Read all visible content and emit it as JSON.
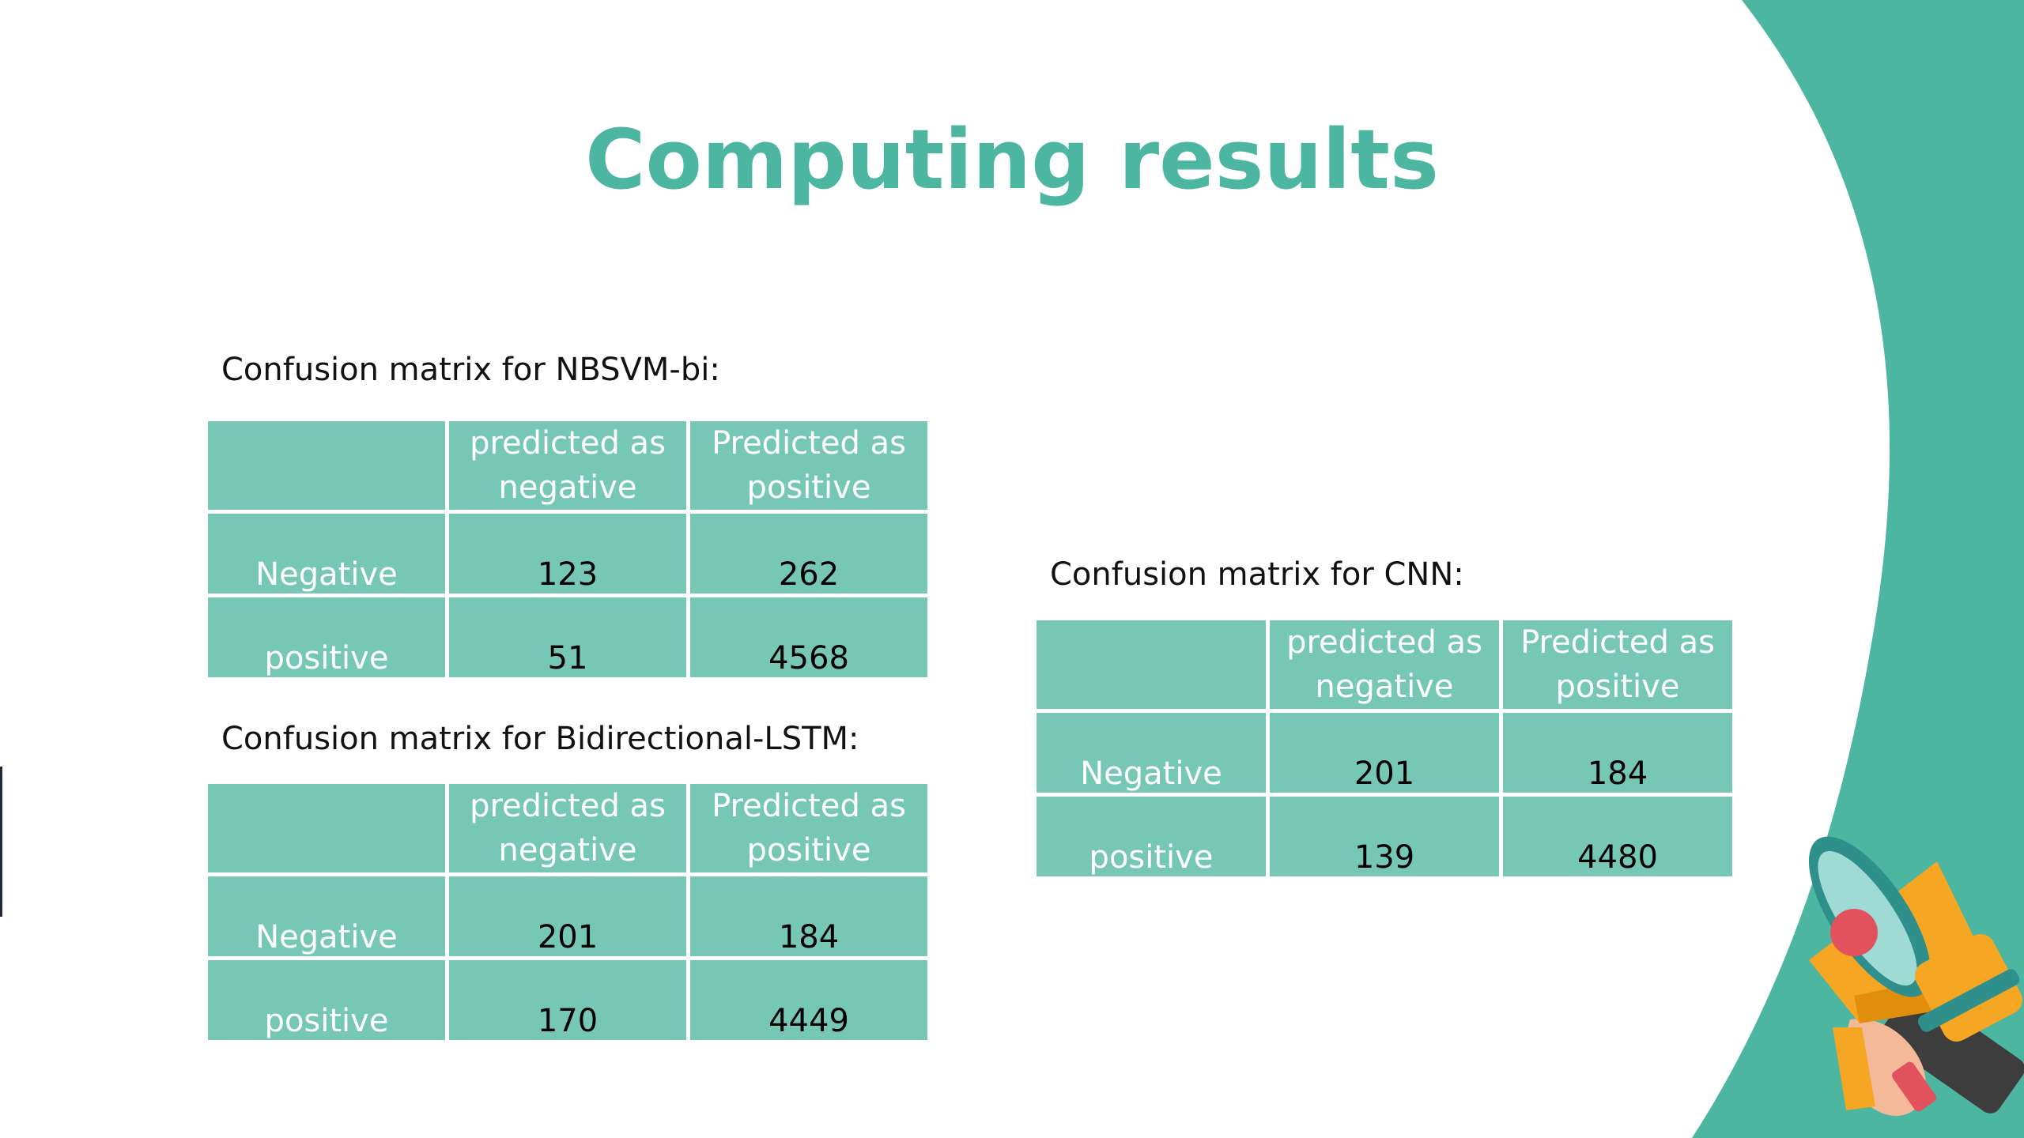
{
  "slide": {
    "title": "Computing results",
    "colors": {
      "accent": "#4db6a0",
      "cell": "#76c7b4",
      "title": "#4db6a0",
      "megaphone_body": "#f5a623",
      "megaphone_bell": "#2f8f8a",
      "megaphone_mouth": "#e2525d"
    },
    "icons": [
      "megaphone-icon"
    ]
  },
  "tables": [
    {
      "caption": "Confusion matrix for NBSVM-bi:",
      "corner": "",
      "col_headers": [
        "predicted as negative",
        "Predicted as positive"
      ],
      "rows": [
        {
          "label": "Negative",
          "values": [
            "123",
            "262"
          ]
        },
        {
          "label": "positive",
          "values": [
            "51",
            "4568"
          ]
        }
      ]
    },
    {
      "caption": "Confusion matrix for Bidirectional-LSTM:",
      "corner": "",
      "col_headers": [
        "predicted as negative",
        "Predicted as positive"
      ],
      "rows": [
        {
          "label": "Negative",
          "values": [
            "201",
            "184"
          ]
        },
        {
          "label": "positive",
          "values": [
            "170",
            "4449"
          ]
        }
      ]
    },
    {
      "caption": "Confusion matrix for CNN:",
      "corner": "",
      "col_headers": [
        "predicted as negative",
        "Predicted as positive"
      ],
      "rows": [
        {
          "label": "Negative",
          "values": [
            "201",
            "184"
          ]
        },
        {
          "label": "positive",
          "values": [
            "139",
            "4480"
          ]
        }
      ]
    }
  ]
}
